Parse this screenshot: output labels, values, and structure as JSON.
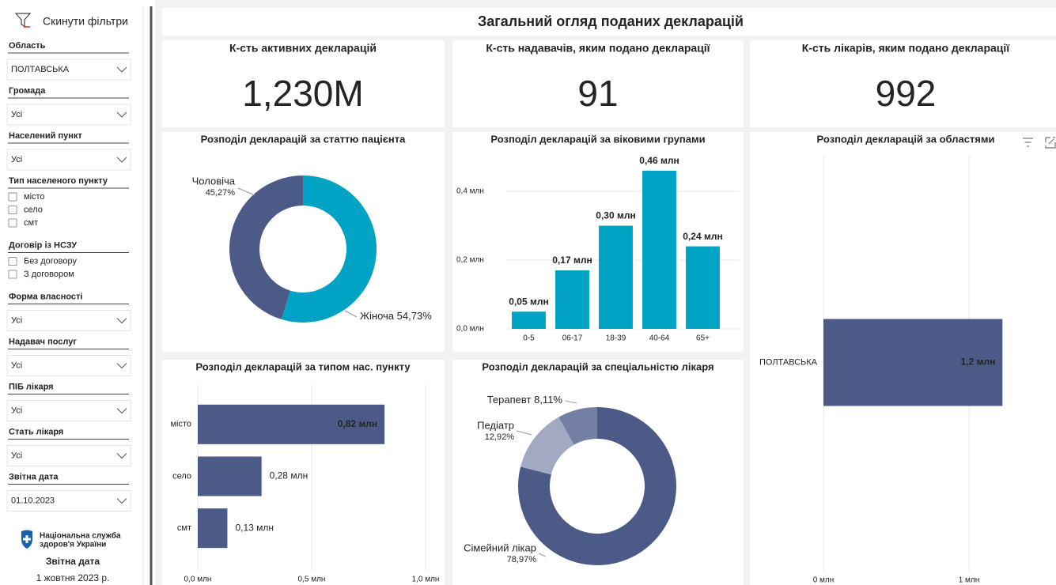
{
  "sidebar": {
    "reset": "Скинути фільтри",
    "filters": [
      {
        "label": "Область",
        "value": "ПОЛТАВСЬКА"
      },
      {
        "label": "Громада",
        "value": "Усі"
      },
      {
        "label": "Населений пункт",
        "value": "Усі"
      },
      {
        "label": "Тип населеного пункту",
        "options": [
          "місто",
          "село",
          "смт"
        ]
      },
      {
        "label": "Договір із НСЗУ",
        "options": [
          "Без договору",
          "З договором"
        ]
      },
      {
        "label": "Форма власності",
        "value": "Усі"
      },
      {
        "label": "Надавач послуг",
        "value": "Усі"
      },
      {
        "label": "ПІБ лікаря",
        "value": "Усі"
      },
      {
        "label": "Стать лікаря",
        "value": "Усі"
      },
      {
        "label": "Звітна дата",
        "value": "01.10.2023"
      }
    ],
    "logo": [
      "Національна служба",
      "здоров'я України"
    ],
    "report_date_label": "Звітна дата",
    "report_date": "1 жовтня 2023 р."
  },
  "title": "Загальний огляд поданих декларацій",
  "kpis": [
    {
      "title": "К-сть активних декларацій",
      "value": "1,230M"
    },
    {
      "title": "К-сть надавачів, яким подано декларації",
      "value": "91"
    },
    {
      "title": "К-сть лікарів, яким подано декларації",
      "value": "992"
    }
  ],
  "chart_data": [
    {
      "type": "donut",
      "title": "Розподіл декларацій за статтю пацієнта",
      "categories": [
        "Жіноча",
        "Чоловіча"
      ],
      "values": [
        54.73,
        45.27
      ],
      "value_labels": [
        "54,73%",
        "45,27%"
      ],
      "colors": [
        "#00a3c4",
        "#4b5a86"
      ]
    },
    {
      "type": "bar",
      "title": "Розподіл декларацій за віковими групами",
      "categories": [
        "0-5",
        "06-17",
        "18-39",
        "40-64",
        "65+"
      ],
      "values": [
        0.05,
        0.17,
        0.3,
        0.46,
        0.24
      ],
      "value_labels": [
        "0,05 млн",
        "0,17 млн",
        "0,30 млн",
        "0,46 млн",
        "0,24 млн"
      ],
      "color": "#00a3c4",
      "ylim": [
        0,
        0.5
      ],
      "yticks": [
        {
          "value": 0,
          "label": "0,0 млн"
        },
        {
          "value": 0.2,
          "label": "0,2 млн"
        },
        {
          "value": 0.4,
          "label": "0,4 млн"
        }
      ],
      "grid": true
    },
    {
      "type": "hbar",
      "title": "Розподіл декларацій за областями",
      "categories": [
        "ПОЛТАВСЬКА"
      ],
      "values": [
        1.23
      ],
      "value_labels": [
        "1,2 млн"
      ],
      "color": "#4b5a86",
      "xlim": [
        0,
        1.5
      ],
      "xticks": [
        {
          "value": 0,
          "label": "0 млн"
        },
        {
          "value": 1,
          "label": "1 млн"
        }
      ],
      "grid": true
    },
    {
      "type": "hbar",
      "title": "Розподіл декларацій за типом нас. пункту",
      "categories": [
        "місто",
        "село",
        "смт"
      ],
      "values": [
        0.82,
        0.28,
        0.13
      ],
      "value_labels": [
        "0,82 млн",
        "0,28 млн",
        "0,13 млн"
      ],
      "color": "#4b5a86",
      "xlim": [
        0,
        1
      ],
      "xticks": [
        {
          "value": 0,
          "label": "0,0 млн"
        },
        {
          "value": 0.5,
          "label": "0,5 млн"
        },
        {
          "value": 1,
          "label": "1,0 млн"
        }
      ],
      "grid": true
    },
    {
      "type": "donut",
      "title": "Розподіл декларацій за спеціальністю лікаря",
      "categories": [
        "Сімейний лікар",
        "Педіатр",
        "Терапевт"
      ],
      "values": [
        78.97,
        12.92,
        8.11
      ],
      "value_labels": [
        "78,97%",
        "12,92%",
        "8,11%"
      ],
      "colors": [
        "#4b5a86",
        "#a2a9c2",
        "#737fa3"
      ]
    }
  ]
}
